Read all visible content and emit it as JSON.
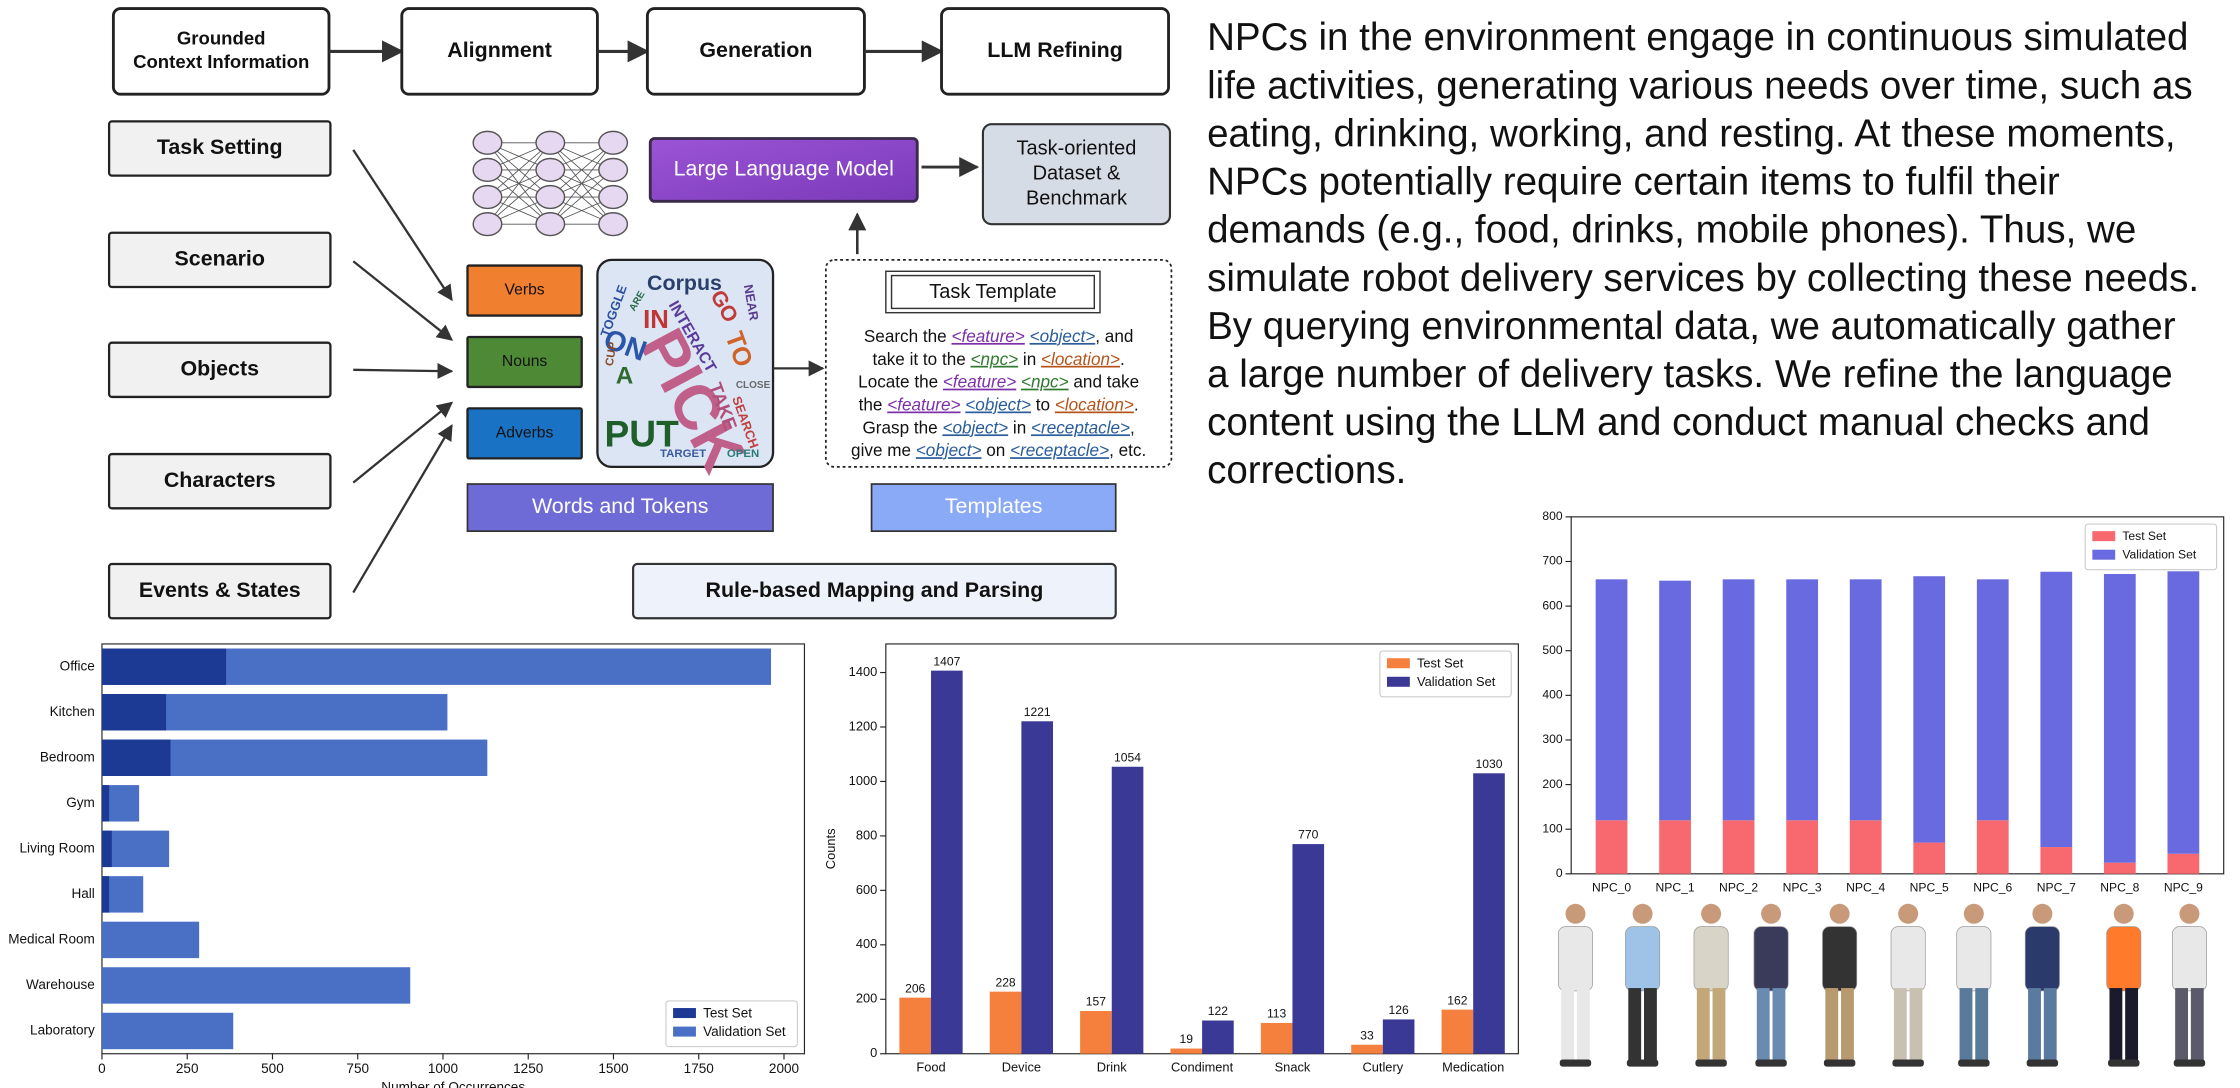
{
  "pipeline": {
    "stages": [
      [
        "Grounded",
        "Context Information"
      ],
      "Alignment",
      "Generation",
      "LLM Refining"
    ]
  },
  "inputs": [
    "Task Setting",
    "Scenario",
    "Objects",
    "Characters",
    "Events & States"
  ],
  "word_types": [
    "Verbs",
    "Nouns",
    "Adverbs"
  ],
  "corpus": {
    "title": "Corpus",
    "words": [
      {
        "text": "PICK",
        "color": "#c0608a"
      },
      {
        "text": "PUT",
        "color": "#1f5f2a"
      },
      {
        "text": "ON",
        "color": "#2a55a8"
      },
      {
        "text": "IN",
        "color": "#c03535"
      },
      {
        "text": "TO",
        "color": "#d0632a"
      },
      {
        "text": "GO",
        "color": "#c03a3a"
      },
      {
        "text": "INTERACT",
        "color": "#5a3a9a"
      },
      {
        "text": "TOGGLE",
        "color": "#2a4fa0"
      },
      {
        "text": "A",
        "color": "#2f6a2f"
      },
      {
        "text": "SEARCH",
        "color": "#c04040"
      },
      {
        "text": "TAKE",
        "color": "#b0507a"
      },
      {
        "text": "TARGET",
        "color": "#3a5aa0"
      },
      {
        "text": "OPEN",
        "color": "#2a7a7a"
      },
      {
        "text": "CLOSE",
        "color": "#6a6a6a"
      },
      {
        "text": "NEAR",
        "color": "#5a3a8a"
      },
      {
        "text": "CUP",
        "color": "#8a4a2a"
      },
      {
        "text": "ARE",
        "color": "#2a6a4a"
      }
    ]
  },
  "llm": "Large Language Model",
  "output": [
    "Task-oriented",
    "Dataset &",
    "Benchmark"
  ],
  "template": {
    "title": "Task Template",
    "lines": [
      [
        "Search the ",
        {
          "text": "<feature>",
          "color": "#7b2fa8"
        },
        " ",
        {
          "text": "<object>",
          "color": "#2a5d9a"
        },
        ", and"
      ],
      [
        "take it to the ",
        {
          "text": "<npc>",
          "color": "#2f7a2f"
        },
        "  in ",
        {
          "text": "<location>",
          "color": "#b5531a"
        },
        "."
      ],
      [
        "Locate the ",
        {
          "text": "<feature>",
          "color": "#7b2fa8"
        },
        " ",
        {
          "text": "<npc>",
          "color": "#2f7a2f"
        },
        " and take"
      ],
      [
        "the ",
        {
          "text": "<feature>",
          "color": "#7b2fa8"
        },
        " ",
        {
          "text": "<object>",
          "color": "#2a5d9a"
        },
        " to ",
        {
          "text": "<location>",
          "color": "#b5531a"
        },
        "."
      ],
      [
        "Grasp the ",
        {
          "text": "<object>",
          "color": "#2a5d9a"
        },
        " in ",
        {
          "text": "<receptacle>",
          "color": "#2a5d9a"
        },
        ","
      ],
      [
        "give me ",
        {
          "text": "<object>",
          "color": "#2a5d9a"
        },
        " on ",
        {
          "text": "<receptacle>",
          "color": "#2a5d9a"
        },
        ", etc."
      ]
    ]
  },
  "section_labels": {
    "words": "Words and Tokens",
    "templates": "Templates",
    "mapping": "Rule-based Mapping and Parsing"
  },
  "paragraph": [
    "NPCs in the environment engage in continuous simulated",
    "life activities, generating various needs over time, such as",
    "eating, drinking, working, and resting. At these moments,",
    "NPCs potentially require certain items to fulfil their",
    "demands (e.g., food, drinks, mobile phones). Thus, we",
    "simulate robot delivery services by collecting these needs.",
    "By querying environmental data, we automatically gather",
    "a large number of delivery tasks. We refine the language",
    "content using the LLM and conduct manual checks and",
    "corrections."
  ],
  "chart_data": [
    {
      "type": "bar",
      "orientation": "horizontal",
      "barmode": "overlay",
      "x_label": "Number of Occurrences",
      "categories": [
        "Office",
        "Kitchen",
        "Bedroom",
        "Gym",
        "Living Room",
        "Hall",
        "Medical Room",
        "Warehouse",
        "Laboratory"
      ],
      "series": [
        {
          "name": "Test Set",
          "color": "#1c3a94",
          "values": [
            364,
            188,
            201,
            21,
            29,
            21,
            0,
            0,
            0
          ]
        },
        {
          "name": "Validation Set",
          "color": "#4a70c6",
          "values": [
            1962,
            1013,
            1130,
            109,
            197,
            121,
            285,
            904,
            385
          ]
        }
      ],
      "xlim": [
        0,
        2060
      ],
      "xticks": [
        0,
        250,
        500,
        750,
        1000,
        1250,
        1500,
        1750,
        2000
      ],
      "legend": "lower right"
    },
    {
      "type": "bar",
      "orientation": "vertical",
      "barmode": "group",
      "show_values": true,
      "y_label": "Counts",
      "categories": [
        "Food",
        "Device",
        "Drink",
        "Condiment",
        "Snack",
        "Cutlery",
        "Medication"
      ],
      "series": [
        {
          "name": "Test Set",
          "color": "#f5803e",
          "values": [
            206,
            228,
            157,
            19,
            113,
            33,
            162
          ]
        },
        {
          "name": "Validation Set",
          "color": "#3a3a96",
          "values": [
            1407,
            1221,
            1054,
            122,
            770,
            126,
            1030
          ]
        }
      ],
      "ylim": [
        0,
        1505
      ],
      "yticks": [
        0,
        200,
        400,
        600,
        800,
        1000,
        1200,
        1400
      ],
      "legend": "upper right"
    },
    {
      "type": "bar",
      "orientation": "vertical",
      "barmode": "stack",
      "categories": [
        "NPC_0",
        "NPC_1",
        "NPC_2",
        "NPC_3",
        "NPC_4",
        "NPC_5",
        "NPC_6",
        "NPC_7",
        "NPC_8",
        "NPC_9"
      ],
      "series": [
        {
          "name": "Test Set",
          "color": "#f8696f",
          "values": [
            120,
            120,
            120,
            120,
            120,
            70,
            120,
            60,
            25,
            45
          ]
        },
        {
          "name": "Validation Set",
          "color": "#6a6ae0",
          "values": [
            540,
            537,
            540,
            540,
            540,
            597,
            540,
            617,
            647,
            633
          ]
        }
      ],
      "ylim": [
        0,
        800
      ],
      "yticks": [
        0,
        100,
        200,
        300,
        400,
        500,
        600,
        700,
        800
      ],
      "legend": "upper right"
    }
  ]
}
